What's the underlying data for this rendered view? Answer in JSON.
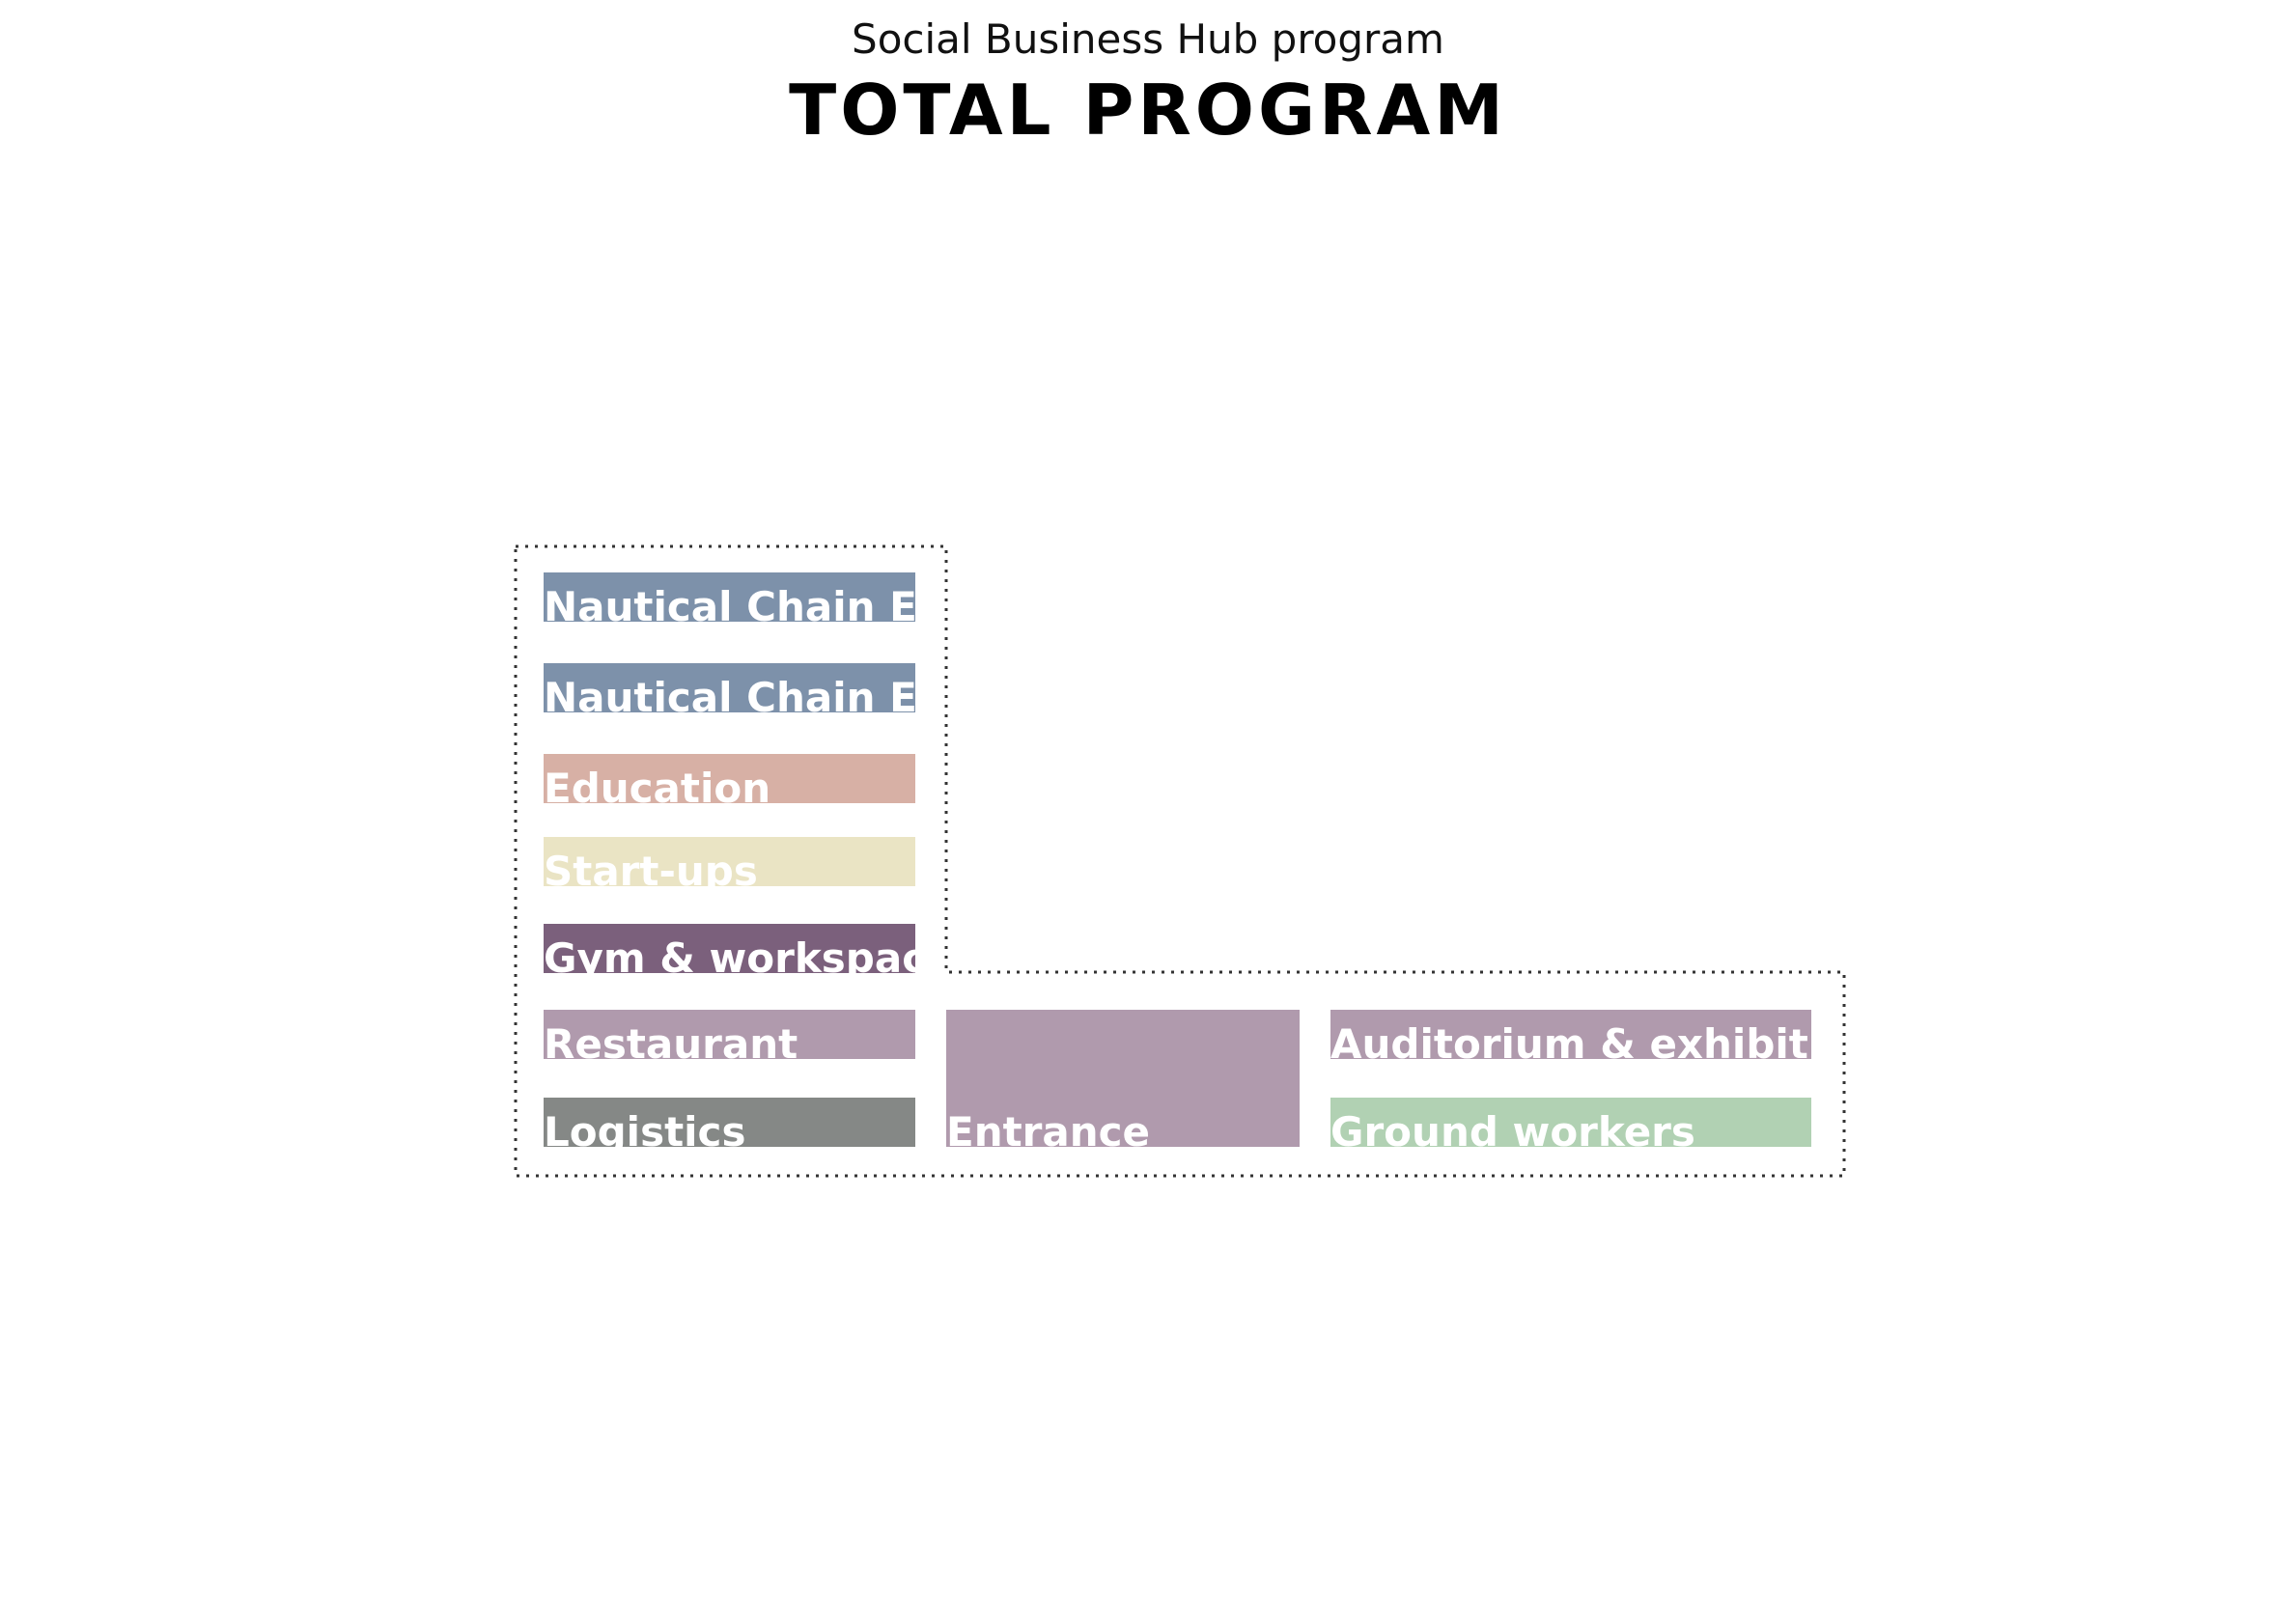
{
  "header": {
    "subtitle": "Social Business Hub program",
    "title": "TOTAL PROGRAM"
  },
  "colors": {
    "nautical": "#7d91aa",
    "education": "#d7b0a5",
    "startups": "#eae4c4",
    "gym": "#7b607c",
    "restaurant": "#b09aad",
    "logistics": "#858886",
    "entrance": "#b09aad",
    "auditorium": "#b09aad",
    "ground_workers": "#b1d1b3",
    "outline": "#333333"
  },
  "blocks": [
    {
      "id": "nautical-chain-1",
      "label": "Nautical Chain E.",
      "color_key": "nautical"
    },
    {
      "id": "nautical-chain-2",
      "label": "Nautical Chain E.",
      "color_key": "nautical"
    },
    {
      "id": "education",
      "label": "Education",
      "color_key": "education"
    },
    {
      "id": "start-ups",
      "label": "Start-ups",
      "color_key": "startups"
    },
    {
      "id": "gym-workspace",
      "label": "Gym & workspace",
      "color_key": "gym"
    },
    {
      "id": "restaurant",
      "label": "Restaurant",
      "color_key": "restaurant"
    },
    {
      "id": "logistics",
      "label": "Logistics",
      "color_key": "logistics"
    },
    {
      "id": "entrance",
      "label": "Entrance",
      "color_key": "entrance"
    },
    {
      "id": "auditorium-exhibition",
      "label": "Auditorium & exhibition",
      "color_key": "auditorium"
    },
    {
      "id": "ground-workers",
      "label": "Ground workers",
      "color_key": "ground_workers"
    }
  ]
}
